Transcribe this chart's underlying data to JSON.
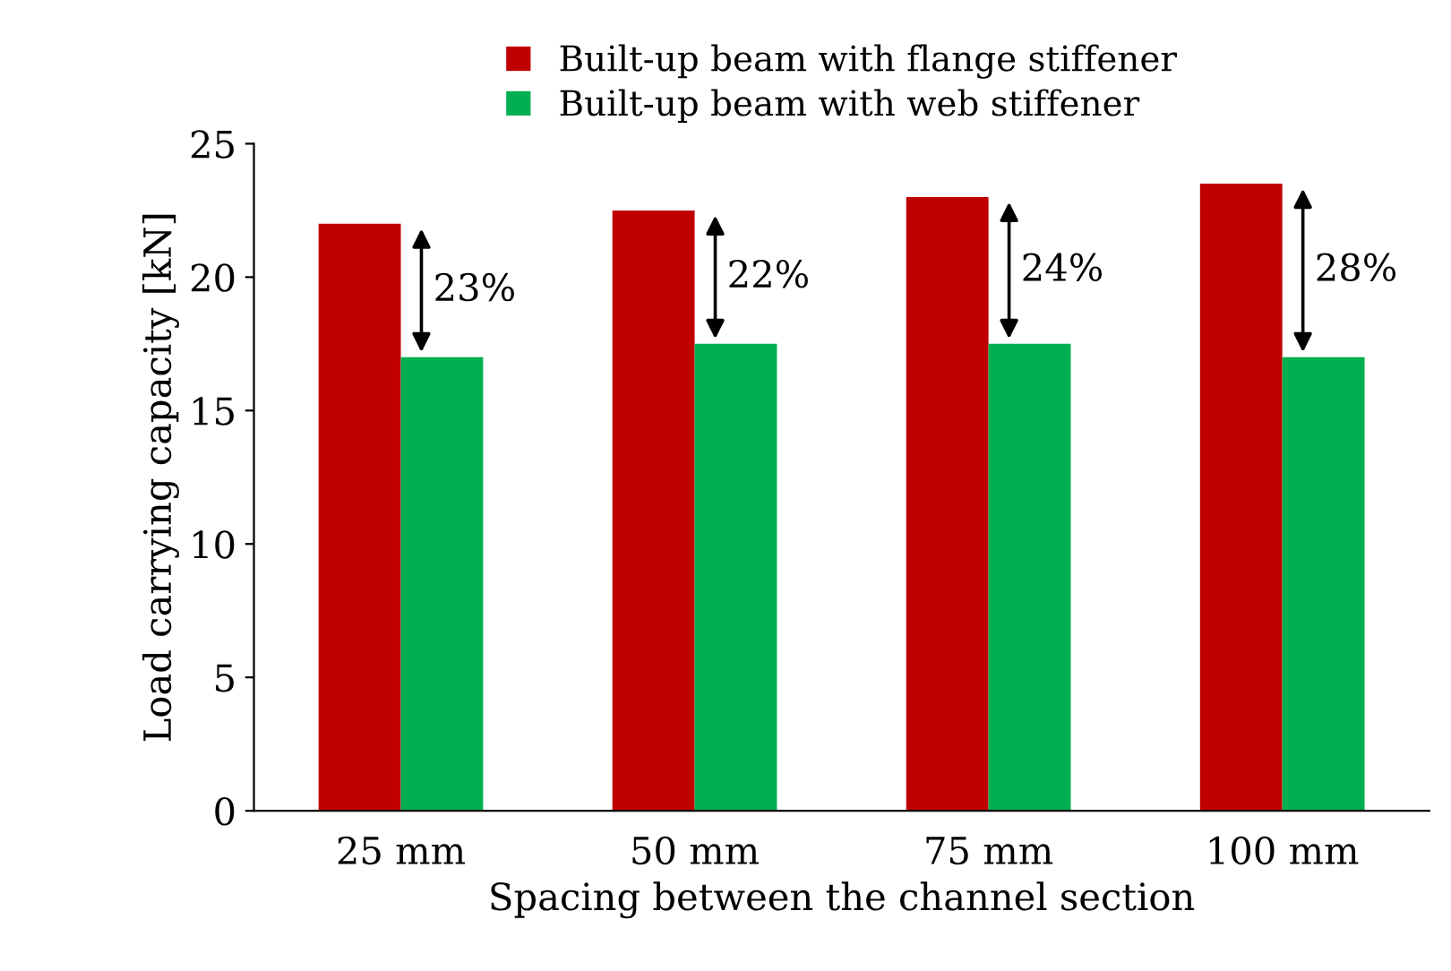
{
  "chart_data": {
    "type": "bar",
    "xlabel": "Spacing between the channel section",
    "ylabel": "Load carrying capacity [kN]",
    "categories": [
      "25 mm",
      "50 mm",
      "75 mm",
      "100 mm"
    ],
    "series": [
      {
        "name": "Built-up beam with flange stiffener",
        "color": "#c00000",
        "values": [
          22,
          22.5,
          23,
          23.5
        ]
      },
      {
        "name": "Built-up beam with web stiffener",
        "color": "#00b050",
        "values": [
          17,
          17.5,
          17.5,
          17
        ]
      }
    ],
    "ylim": [
      0,
      25
    ],
    "yticks": [
      0,
      5,
      10,
      15,
      20,
      25
    ],
    "grid": false,
    "legend": "top",
    "annotations": [
      "23%",
      "22%",
      "24%",
      "28%"
    ]
  }
}
